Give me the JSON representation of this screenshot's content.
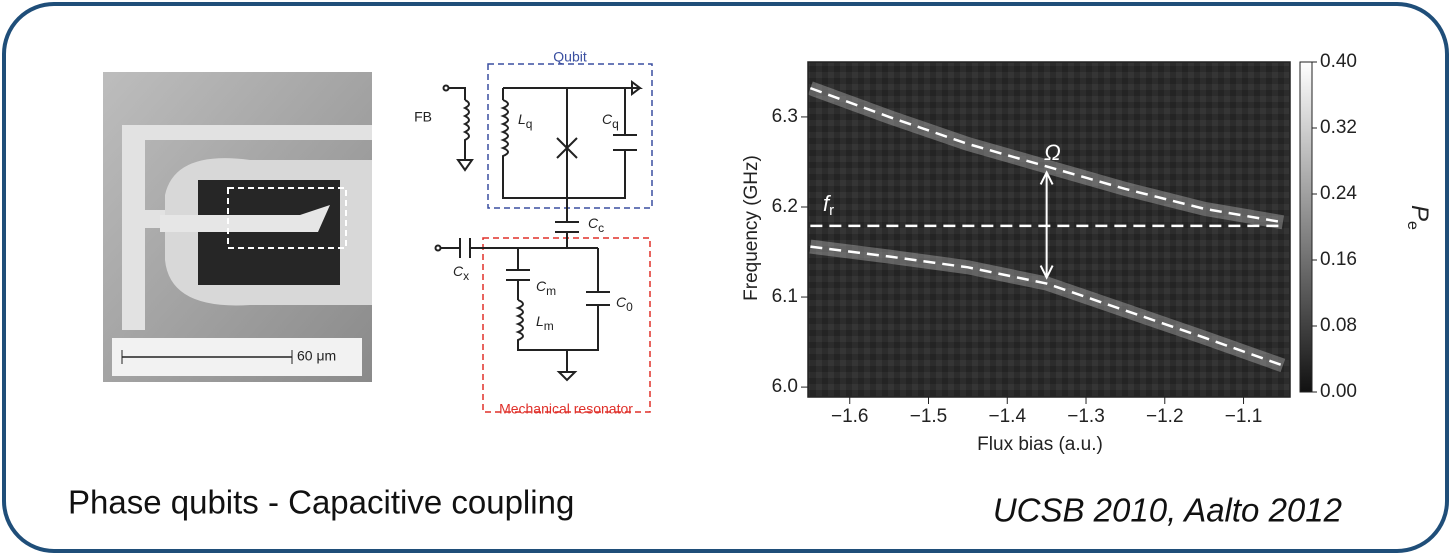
{
  "slide": {
    "caption": "Phase qubits   - Capacitive coupling",
    "citation": "UCSB 2010, Aalto 2012"
  },
  "micrograph": {
    "scale_label": "60 μm"
  },
  "circuit": {
    "qubit_label": "Qubit",
    "resonator_label": "Mechanical resonator",
    "fb_label": "FB",
    "components": [
      {
        "symbol": "L",
        "sub": "q"
      },
      {
        "symbol": "C",
        "sub": "q"
      },
      {
        "symbol": "C",
        "sub": "c"
      },
      {
        "symbol": "C",
        "sub": "x"
      },
      {
        "symbol": "C",
        "sub": "m"
      },
      {
        "symbol": "L",
        "sub": "m"
      },
      {
        "symbol": "C",
        "sub": "0"
      }
    ]
  },
  "chart_data": {
    "type": "line",
    "xlabel": "Flux bias (a.u.)",
    "ylabel": "Frequency (GHz)",
    "x": [
      -1.65,
      -1.55,
      -1.45,
      -1.35,
      -1.25,
      -1.15,
      -1.05
    ],
    "series": [
      {
        "color": "#ffffff",
        "values": [
          6.332,
          6.3,
          6.27,
          6.245,
          6.22,
          6.198,
          6.183
        ]
      },
      {
        "color": "#ffffff",
        "values": [
          6.179,
          6.179,
          6.179,
          6.179,
          6.179,
          6.179,
          6.179
        ]
      },
      {
        "color": "#ffffff",
        "values": [
          6.156,
          6.145,
          6.133,
          6.115,
          6.085,
          6.055,
          6.024
        ]
      }
    ],
    "line_style": "dashed",
    "annotations": {
      "splitting": "Ω",
      "resonator": {
        "symbol": "f",
        "sub": "r"
      }
    },
    "xlim": [
      -1.653,
      -1.041
    ],
    "ylim": [
      5.989,
      6.361
    ],
    "xticks": [
      {
        "value": -1.6,
        "label": "−1.6"
      },
      {
        "value": -1.5,
        "label": "−1.5"
      },
      {
        "value": -1.4,
        "label": "−1.4"
      },
      {
        "value": -1.3,
        "label": "−1.3"
      },
      {
        "value": -1.2,
        "label": "−1.2"
      },
      {
        "value": -1.1,
        "label": "−1.1"
      }
    ],
    "yticks": [
      {
        "value": 6,
        "label": "6.0"
      },
      6.1,
      6.2,
      6.3
    ],
    "colorbar": {
      "label": {
        "symbol": "P",
        "sub": "e"
      },
      "lim": [
        0,
        0.4
      ],
      "colors": [
        "#111111",
        "#ffffff"
      ],
      "ticks": [
        {
          "value": 0,
          "label": "0.00"
        },
        {
          "value": 0.08,
          "label": "0.08"
        },
        {
          "value": 0.16,
          "label": "0.16"
        },
        {
          "value": 0.24,
          "label": "0.24"
        },
        {
          "value": 0.32,
          "label": "0.32"
        },
        {
          "value": 0.4,
          "label": "0.40"
        }
      ]
    }
  }
}
